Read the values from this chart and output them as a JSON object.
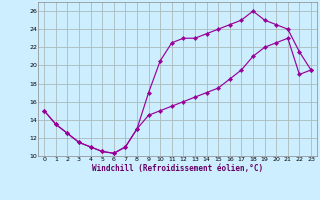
{
  "xlabel": "Windchill (Refroidissement éolien,°C)",
  "bg_color": "#cceeff",
  "line_color": "#990099",
  "grid_color": "#aabbbb",
  "xlim": [
    -0.5,
    23.5
  ],
  "ylim": [
    10,
    27
  ],
  "xticks": [
    0,
    1,
    2,
    3,
    4,
    5,
    6,
    7,
    8,
    9,
    10,
    11,
    12,
    13,
    14,
    15,
    16,
    17,
    18,
    19,
    20,
    21,
    22,
    23
  ],
  "yticks": [
    10,
    12,
    14,
    16,
    18,
    20,
    22,
    24,
    26
  ],
  "line1_x": [
    0,
    1,
    2,
    3,
    4,
    5,
    6,
    7,
    8,
    9,
    10,
    11,
    12,
    13,
    14,
    15,
    16,
    17,
    18,
    19,
    20,
    21,
    22,
    23
  ],
  "line1_y": [
    15.0,
    13.5,
    12.5,
    11.5,
    11.0,
    10.5,
    10.3,
    11.0,
    13.0,
    17.0,
    20.5,
    22.5,
    23.0,
    23.0,
    23.5,
    24.0,
    24.5,
    25.0,
    26.0,
    25.0,
    24.5,
    24.0,
    21.5,
    19.5
  ],
  "line2_x": [
    0,
    1,
    2,
    3,
    4,
    5,
    6,
    7,
    8,
    9,
    10,
    11,
    12,
    13,
    14,
    15,
    16,
    17,
    18,
    19,
    20,
    21,
    22,
    23
  ],
  "line2_y": [
    15.0,
    13.5,
    12.5,
    11.5,
    11.0,
    10.5,
    10.3,
    11.0,
    13.0,
    14.5,
    15.0,
    15.5,
    16.0,
    16.5,
    17.0,
    17.5,
    18.5,
    19.5,
    21.0,
    22.0,
    22.5,
    23.0,
    19.0,
    19.5
  ]
}
